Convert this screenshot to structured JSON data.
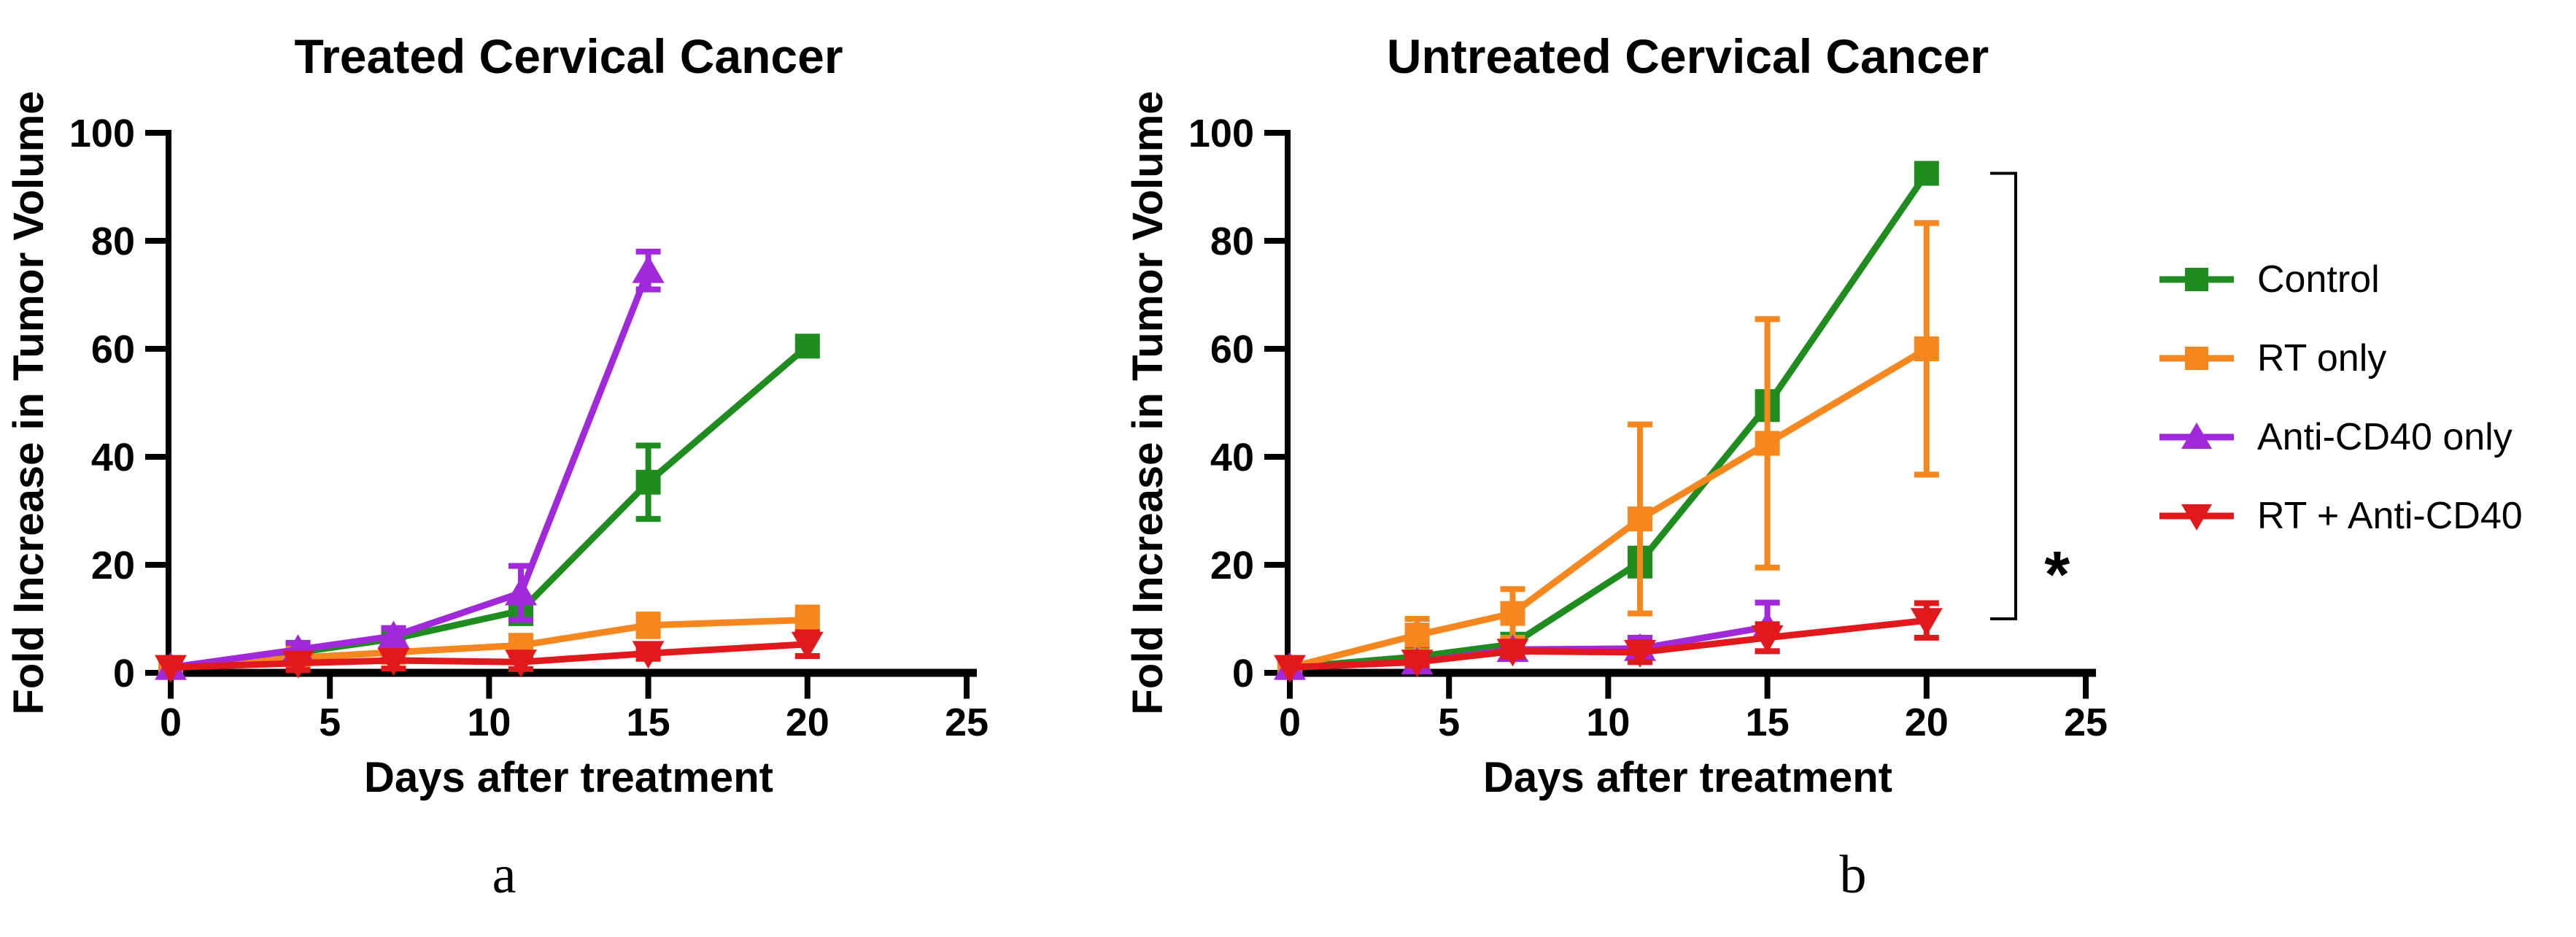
{
  "figure": {
    "background": "#ffffff",
    "text_color": "#000000"
  },
  "legend": {
    "position": "right",
    "entries": [
      {
        "label": "Control",
        "color": "#1E8C1E",
        "marker": "square"
      },
      {
        "label": "RT only",
        "color": "#F6871F",
        "marker": "square"
      },
      {
        "label": "Anti-CD40 only",
        "color": "#A228DC",
        "marker": "triangle-up"
      },
      {
        "label": "RT + Anti-CD40",
        "color": "#E1191C",
        "marker": "triangle-down"
      }
    ]
  },
  "chart_data": [
    {
      "type": "line",
      "panel_label": "a",
      "title": "Treated Cervical Cancer",
      "xlabel": "Days after treatment",
      "ylabel": "Fold Increase in Tumor Volume",
      "xlim": [
        0,
        25
      ],
      "ylim": [
        0,
        100
      ],
      "xticks": [
        0,
        5,
        10,
        15,
        20,
        25
      ],
      "yticks": [
        0,
        20,
        40,
        60,
        80,
        100
      ],
      "grid": false,
      "legend_position": "none",
      "series": [
        {
          "name": "Control",
          "color": "#1E8C1E",
          "marker": "square",
          "x": [
            0,
            4,
            7,
            11,
            15,
            20
          ],
          "y": [
            1,
            3.8,
            6.3,
            11.5,
            35.3,
            60.5
          ],
          "yerr": [
            0,
            0,
            0.8,
            2.3,
            6.8,
            0
          ]
        },
        {
          "name": "RT only",
          "color": "#F6871F",
          "marker": "square",
          "x": [
            0,
            4,
            7,
            11,
            15,
            20
          ],
          "y": [
            1,
            2.8,
            3.8,
            5.1,
            8.8,
            9.8
          ],
          "yerr": [
            0,
            1.0,
            1.0,
            1.5,
            2.0,
            2.3
          ]
        },
        {
          "name": "Anti-CD40 only",
          "color": "#A228DC",
          "marker": "triangle-up",
          "x": [
            0,
            4,
            7,
            11,
            15
          ],
          "y": [
            1,
            4.3,
            6.8,
            14.8,
            74.5
          ],
          "yerr": [
            0,
            1.2,
            1.5,
            5.0,
            3.5
          ]
        },
        {
          "name": "RT + Anti-CD40",
          "color": "#E1191C",
          "marker": "triangle-down",
          "x": [
            0,
            4,
            7,
            11,
            15,
            20
          ],
          "y": [
            1,
            1.8,
            2.3,
            2.0,
            3.6,
            5.3
          ],
          "yerr": [
            0,
            1.3,
            1.5,
            1.3,
            1.0,
            2.2
          ]
        }
      ],
      "annotation": null
    },
    {
      "type": "line",
      "panel_label": "b",
      "title": "Untreated Cervical Cancer",
      "xlabel": "Days after treatment",
      "ylabel": "Fold Increase in Tumor Volume",
      "xlim": [
        0,
        25
      ],
      "ylim": [
        0,
        100
      ],
      "xticks": [
        0,
        5,
        10,
        15,
        20,
        25
      ],
      "yticks": [
        0,
        20,
        40,
        60,
        80,
        100
      ],
      "grid": false,
      "legend_position": "none",
      "series": [
        {
          "name": "Control",
          "color": "#1E8C1E",
          "marker": "square",
          "x": [
            0,
            4,
            7,
            11,
            15,
            20
          ],
          "y": [
            1,
            3.0,
            5.3,
            20.5,
            49.5,
            92.5
          ],
          "yerr": [
            0,
            0.8,
            1.2,
            2.5,
            2.5,
            0
          ]
        },
        {
          "name": "RT only",
          "color": "#F6871F",
          "marker": "square",
          "x": [
            0,
            4,
            7,
            11,
            15,
            20
          ],
          "y": [
            1,
            7.0,
            11.0,
            28.5,
            42.5,
            60.0
          ],
          "yerr": [
            0,
            3.0,
            4.5,
            17.5,
            23.0,
            23.3
          ]
        },
        {
          "name": "Anti-CD40 only",
          "color": "#A228DC",
          "marker": "triangle-up",
          "x": [
            0,
            4,
            7,
            11,
            15
          ],
          "y": [
            1,
            2.0,
            4.3,
            4.5,
            8.5
          ],
          "yerr": [
            0,
            0.6,
            1.0,
            2.0,
            4.5
          ]
        },
        {
          "name": "RT + Anti-CD40",
          "color": "#E1191C",
          "marker": "triangle-down",
          "x": [
            0,
            4,
            7,
            11,
            15,
            20
          ],
          "y": [
            1,
            2.0,
            4.0,
            3.8,
            6.5,
            9.7
          ],
          "yerr": [
            0,
            0.6,
            1.0,
            1.8,
            2.5,
            3.2
          ]
        }
      ],
      "annotation": {
        "type": "significance-bracket",
        "label": "*",
        "x_day": 22.8,
        "cap_day": 22.0,
        "y_top": 92.5,
        "y_bottom": 10.0,
        "label_day": 24.1,
        "label_y": 19.7
      }
    }
  ]
}
